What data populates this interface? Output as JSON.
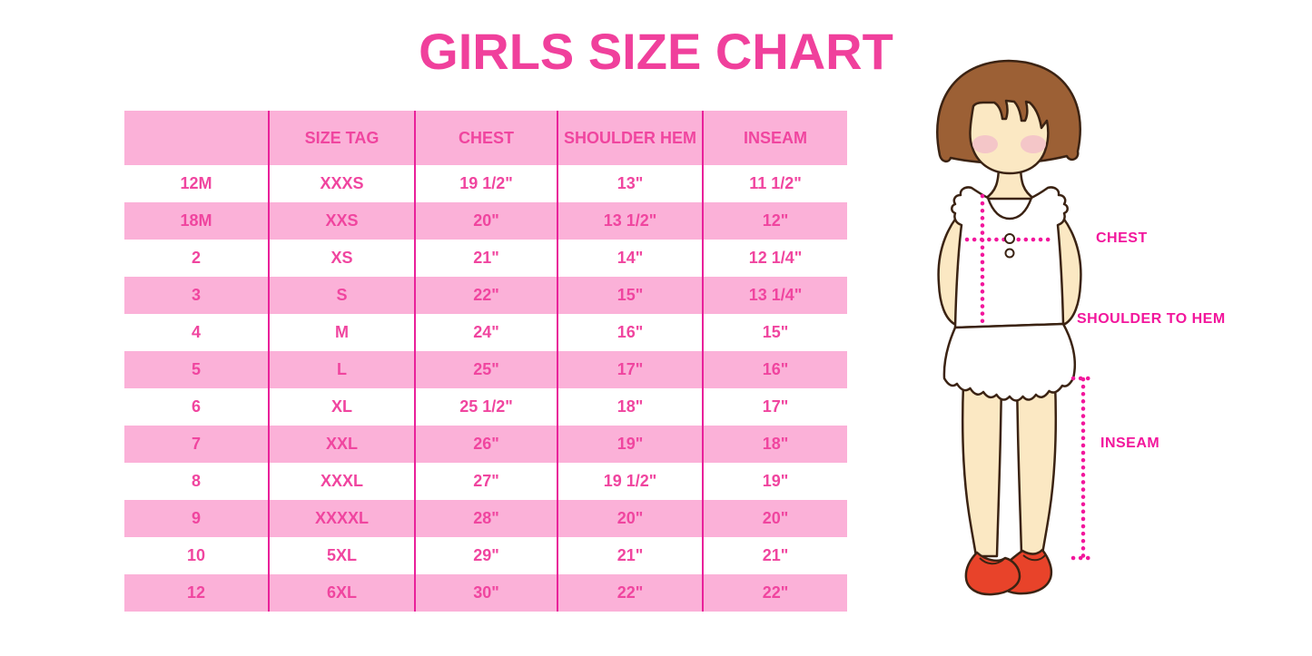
{
  "title": "GIRLS SIZE CHART",
  "chart_data": {
    "type": "table",
    "title": "GIRLS SIZE CHART",
    "columns": [
      "",
      "SIZE TAG",
      "CHEST",
      "SHOULDER HEM",
      "INSEAM"
    ],
    "rows": [
      [
        "12M",
        "XXXS",
        "19 1/2\"",
        "13\"",
        "11 1/2\""
      ],
      [
        "18M",
        "XXS",
        "20\"",
        "13 1/2\"",
        "12\""
      ],
      [
        "2",
        "XS",
        "21\"",
        "14\"",
        "12 1/4\""
      ],
      [
        "3",
        "S",
        "22\"",
        "15\"",
        "13 1/4\""
      ],
      [
        "4",
        "M",
        "24\"",
        "16\"",
        "15\""
      ],
      [
        "5",
        "L",
        "25\"",
        "17\"",
        "16\""
      ],
      [
        "6",
        "XL",
        "25 1/2\"",
        "18\"",
        "17\""
      ],
      [
        "7",
        "XXL",
        "26\"",
        "19\"",
        "18\""
      ],
      [
        "8",
        "XXXL",
        "27\"",
        "19 1/2\"",
        "19\""
      ],
      [
        "9",
        "XXXXL",
        "28\"",
        "20\"",
        "20\""
      ],
      [
        "10",
        "5XL",
        "29\"",
        "21\"",
        "21\""
      ],
      [
        "12",
        "6XL",
        "30\"",
        "22\"",
        "22\""
      ]
    ]
  },
  "figure": {
    "labels": {
      "chest": "CHEST",
      "shoulder_to_hem": "SHOULDER TO HEM",
      "inseam": "INSEAM"
    }
  },
  "colors": {
    "title_pink": "#F0409C",
    "table_text_pink": "#F0459F",
    "row_pink": "#FBB1D8",
    "divider_magenta": "#E9219A",
    "label_magenta": "#F2169C",
    "hair_brown": "#9C6035",
    "outline_brown": "#3B2313",
    "skin": "#FBE8C3",
    "blush": "#F2BFC9",
    "shoe_red": "#E8432A"
  }
}
